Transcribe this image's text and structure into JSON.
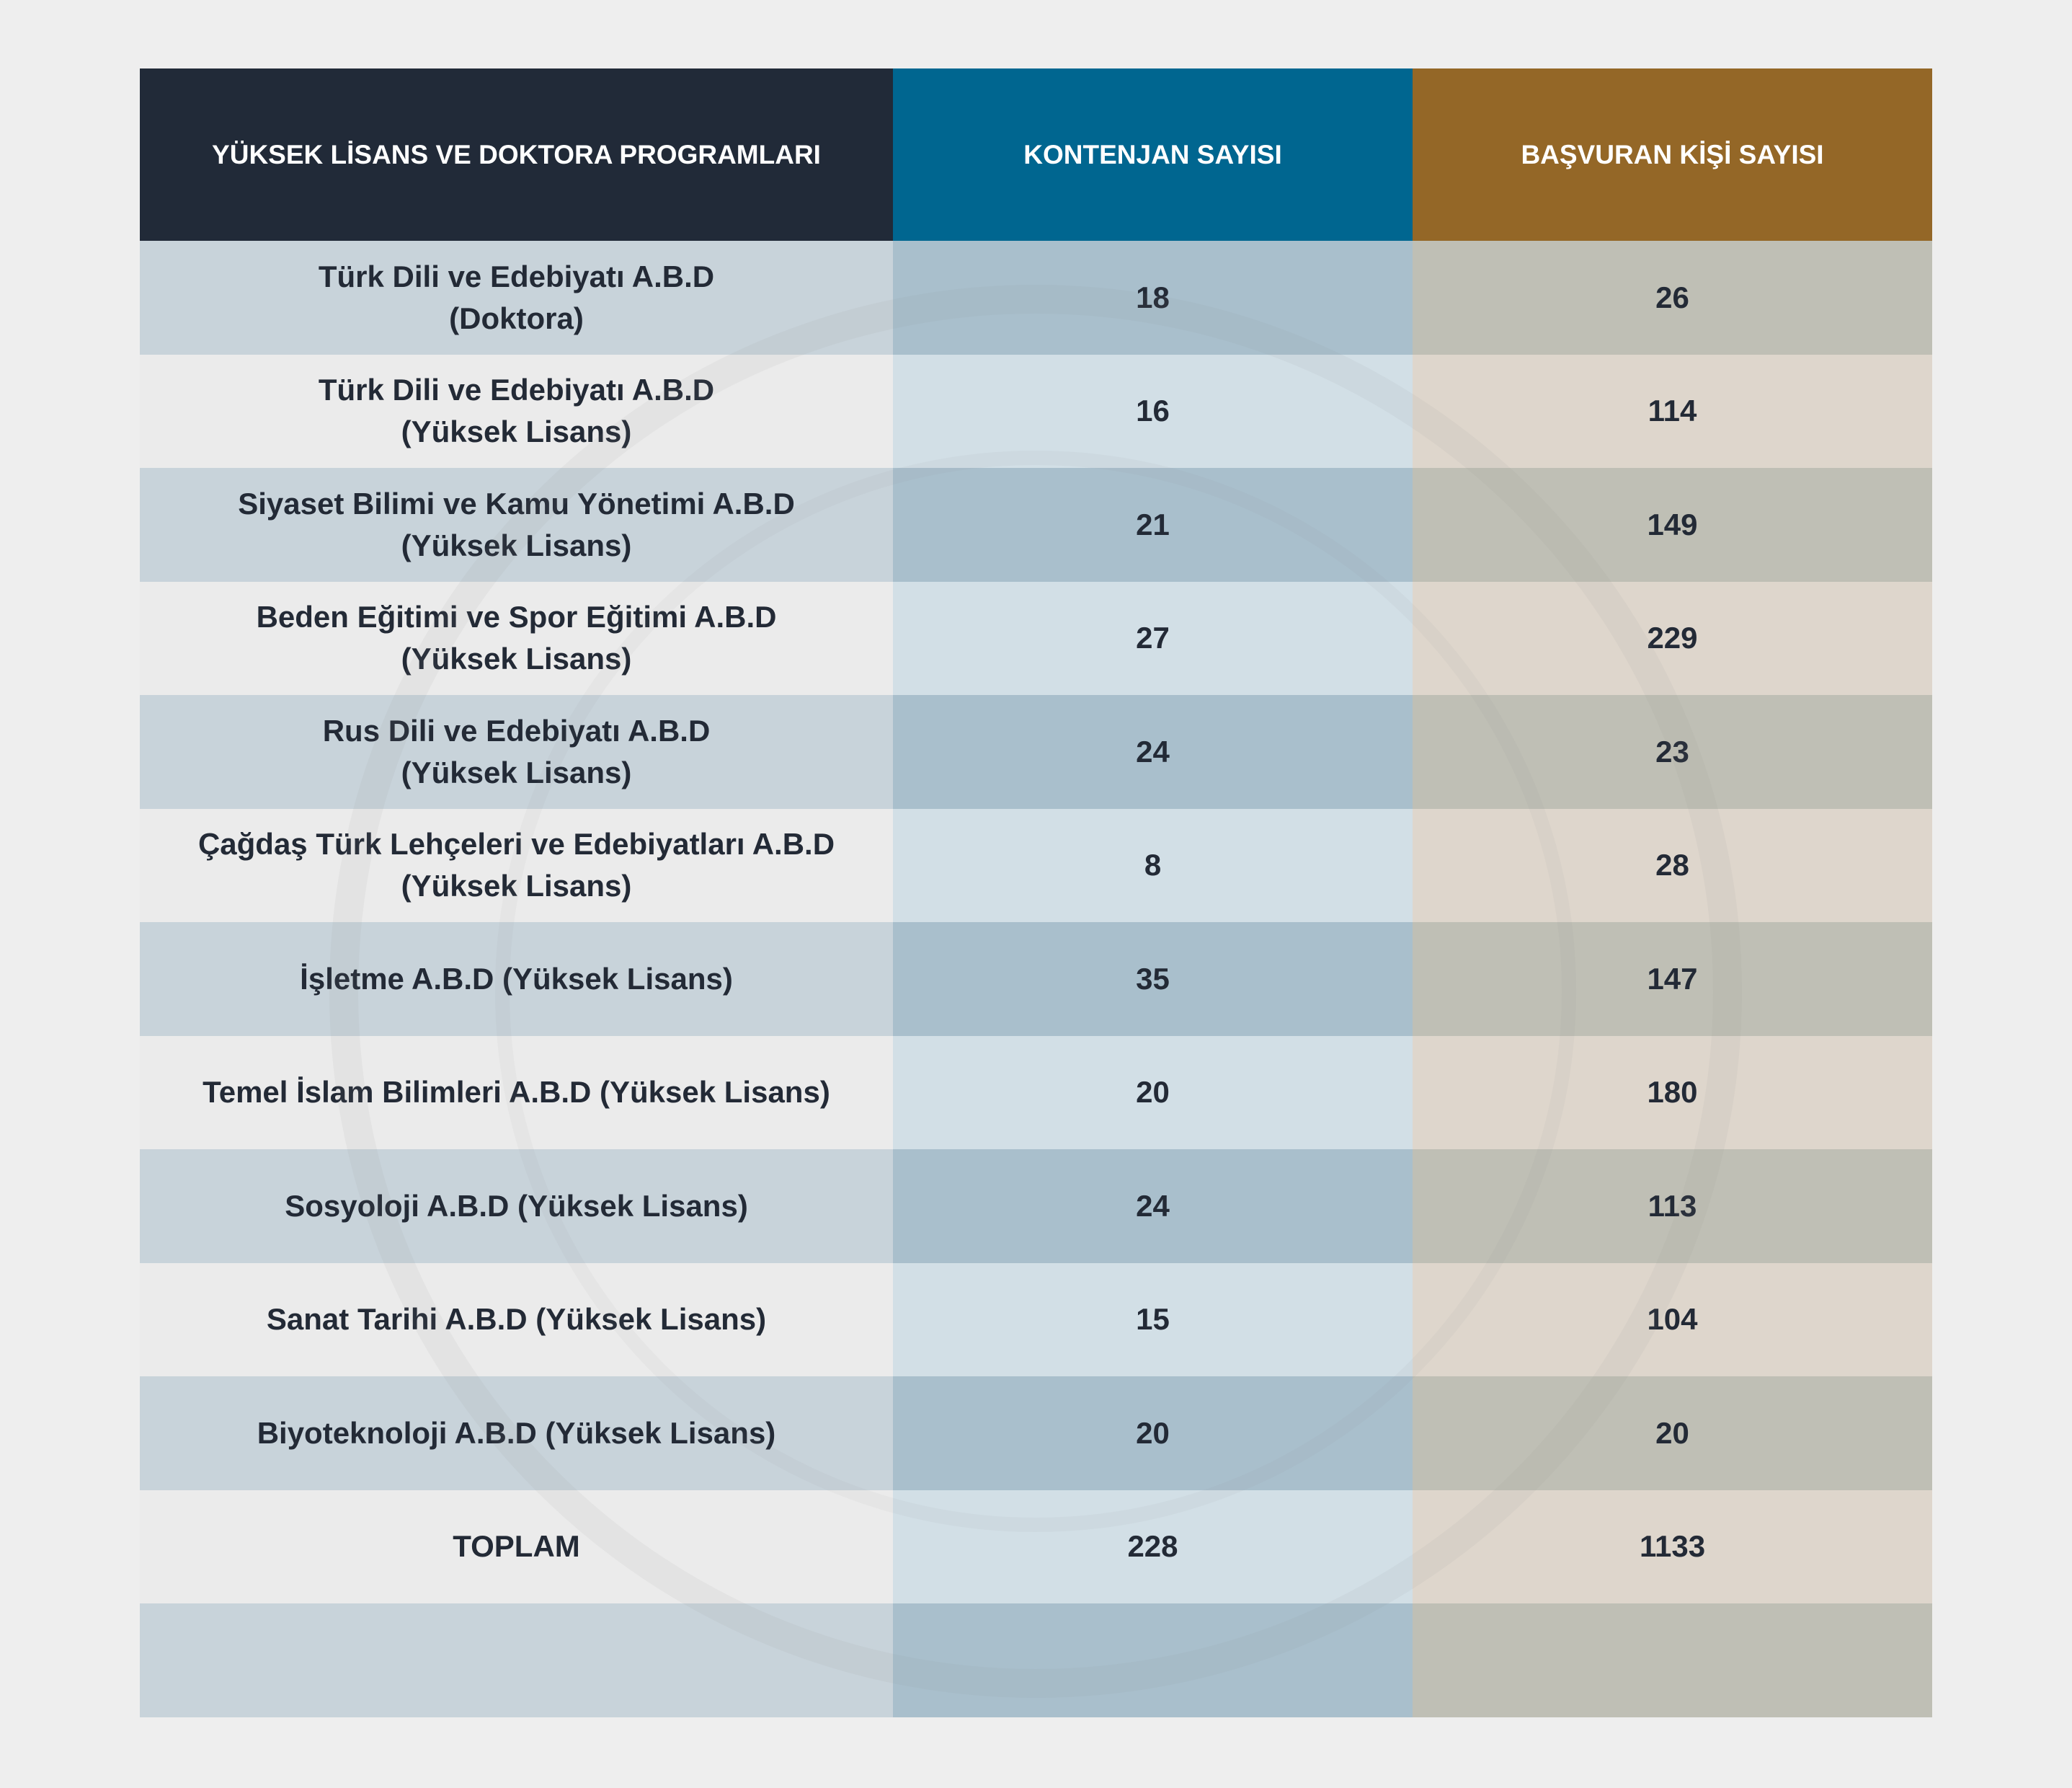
{
  "header": {
    "columns": [
      "YÜKSEK LİSANS VE DOKTORA PROGRAMLARI",
      "KONTENJAN SAYISI",
      "BAŞVURAN KİŞİ SAYISI"
    ]
  },
  "table": {
    "rows": [
      {
        "program": [
          "Türk Dili ve Edebiyatı A.B.D",
          "(Doktora)"
        ],
        "quota": 18,
        "applicants": 26
      },
      {
        "program": [
          "Türk Dili ve Edebiyatı A.B.D",
          "(Yüksek Lisans)"
        ],
        "quota": 16,
        "applicants": 114
      },
      {
        "program": [
          "Siyaset Bilimi ve Kamu Yönetimi A.B.D",
          "(Yüksek Lisans)"
        ],
        "quota": 21,
        "applicants": 149
      },
      {
        "program": [
          "Beden Eğitimi ve Spor Eğitimi A.B.D",
          "(Yüksek Lisans)"
        ],
        "quota": 27,
        "applicants": 229
      },
      {
        "program": [
          "Rus Dili ve Edebiyatı A.B.D",
          "(Yüksek Lisans)"
        ],
        "quota": 24,
        "applicants": 23
      },
      {
        "program": [
          "Çağdaş Türk Lehçeleri ve Edebiyatları A.B.D",
          "(Yüksek Lisans)"
        ],
        "quota": 8,
        "applicants": 28
      },
      {
        "program": [
          "İşletme A.B.D (Yüksek Lisans)"
        ],
        "quota": 35,
        "applicants": 147
      },
      {
        "program": [
          "Temel İslam Bilimleri A.B.D (Yüksek Lisans)"
        ],
        "quota": 20,
        "applicants": 180
      },
      {
        "program": [
          "Sosyoloji A.B.D (Yüksek Lisans)"
        ],
        "quota": 24,
        "applicants": 113
      },
      {
        "program": [
          "Sanat Tarihi A.B.D (Yüksek Lisans)"
        ],
        "quota": 15,
        "applicants": 104
      },
      {
        "program": [
          "Biyoteknoloji A.B.D (Yüksek Lisans)"
        ],
        "quota": 20,
        "applicants": 20
      }
    ],
    "total": {
      "label": "TOPLAM",
      "quota": 228,
      "applicants": 1133
    }
  }
}
